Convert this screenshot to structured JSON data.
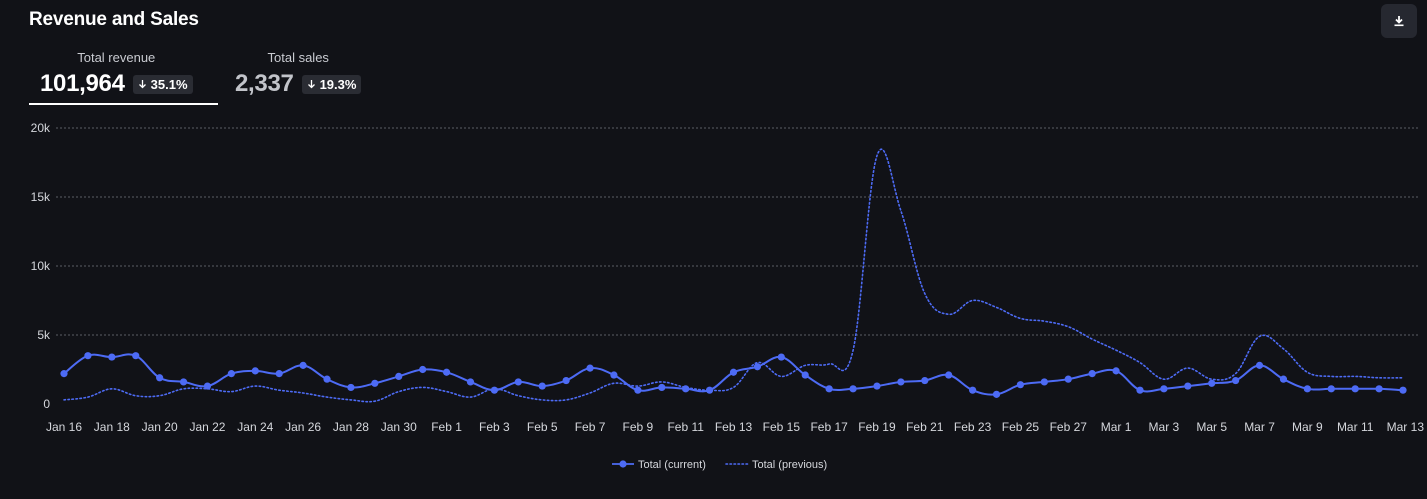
{
  "header": {
    "title": "Revenue and Sales",
    "download_icon": "download-icon"
  },
  "kpis": [
    {
      "label": "Total revenue",
      "value": "101,964",
      "change": "35.1%",
      "direction": "down",
      "selected": true
    },
    {
      "label": "Total sales",
      "value": "2,337",
      "change": "19.3%",
      "direction": "down",
      "selected": false
    }
  ],
  "colors": {
    "background": "#111217",
    "series": "#4d6bf5",
    "grid": "#5a5d66"
  },
  "chart_data": {
    "type": "line",
    "title": "",
    "xlabel": "",
    "ylabel": "",
    "ylim": [
      0,
      20000
    ],
    "y_ticks": [
      {
        "value": 0,
        "label": "0"
      },
      {
        "value": 5000,
        "label": "5k"
      },
      {
        "value": 10000,
        "label": "10k"
      },
      {
        "value": 15000,
        "label": "15k"
      },
      {
        "value": 20000,
        "label": "20k"
      }
    ],
    "x_tick_labels": [
      "Jan 16",
      "Jan 18",
      "Jan 20",
      "Jan 22",
      "Jan 24",
      "Jan 26",
      "Jan 28",
      "Jan 30",
      "Feb 1",
      "Feb 3",
      "Feb 5",
      "Feb 7",
      "Feb 9",
      "Feb 11",
      "Feb 13",
      "Feb 15",
      "Feb 17",
      "Feb 19",
      "Feb 21",
      "Feb 23",
      "Feb 25",
      "Feb 27",
      "Mar 1",
      "Mar 3",
      "Mar 5",
      "Mar 7",
      "Mar 9",
      "Mar 11",
      "Mar 13"
    ],
    "x_count": 57,
    "x_tick_every": 2,
    "series": [
      {
        "name": "Total (current)",
        "style": "solid-markers",
        "values": [
          2200,
          3500,
          3400,
          3500,
          1900,
          1600,
          1300,
          2200,
          2400,
          2200,
          2800,
          1800,
          1200,
          1500,
          2000,
          2500,
          2300,
          1600,
          1000,
          1600,
          1300,
          1700,
          2600,
          2100,
          1000,
          1200,
          1100,
          1000,
          2300,
          2700,
          3400,
          2100,
          1100,
          1100,
          1300,
          1600,
          1700,
          2100,
          1000,
          700,
          1400,
          1600,
          1800,
          2200,
          2400,
          1000,
          1100,
          1300,
          1500,
          1700,
          2800,
          1800,
          1100,
          1100,
          1100,
          1100,
          1000
        ]
      },
      {
        "name": "Total (previous)",
        "style": "dotted",
        "values": [
          300,
          500,
          1100,
          600,
          600,
          1100,
          1100,
          900,
          1300,
          1000,
          800,
          500,
          300,
          200,
          900,
          1200,
          900,
          500,
          1100,
          600,
          300,
          300,
          800,
          1500,
          1300,
          1600,
          1200,
          1000,
          1200,
          3000,
          2000,
          2800,
          2900,
          3900,
          18000,
          14000,
          8000,
          6500,
          7500,
          7000,
          6200,
          6000,
          5600,
          4700,
          3900,
          3000,
          1800,
          2600,
          1800,
          2200,
          4900,
          4000,
          2300,
          2000,
          2000,
          1900,
          1900
        ]
      }
    ]
  }
}
